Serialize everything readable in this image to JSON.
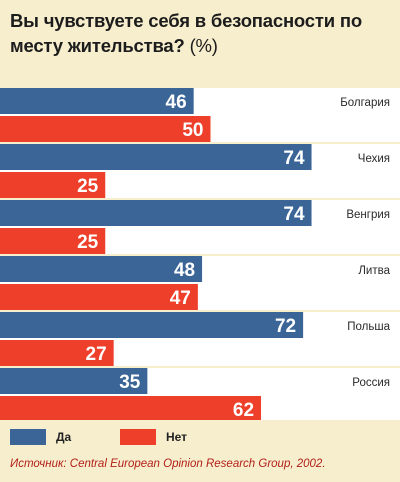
{
  "chart_data": {
    "type": "bar",
    "orientation": "horizontal",
    "title": "Вы чувствуете себя в безопасности по месту жительства?",
    "unit": "(%)",
    "categories": [
      "Болгария",
      "Чехия",
      "Венгрия",
      "Литва",
      "Польша",
      "Россия"
    ],
    "series": [
      {
        "name": "Да",
        "color": "#3a6596",
        "values": [
          46,
          74,
          74,
          48,
          72,
          35
        ]
      },
      {
        "name": "Нет",
        "color": "#ee3f2a",
        "values": [
          50,
          25,
          25,
          47,
          27,
          62
        ]
      }
    ],
    "xlim": [
      0,
      100
    ],
    "grid": false,
    "legend_position": "bottom-left"
  },
  "source": "Источник: Central European Opinion Research Group, 2002.",
  "colors": {
    "background": "#f6eecd",
    "band": "#ffffff",
    "label_text": "#ffffff",
    "source_text": "#b3201a"
  }
}
